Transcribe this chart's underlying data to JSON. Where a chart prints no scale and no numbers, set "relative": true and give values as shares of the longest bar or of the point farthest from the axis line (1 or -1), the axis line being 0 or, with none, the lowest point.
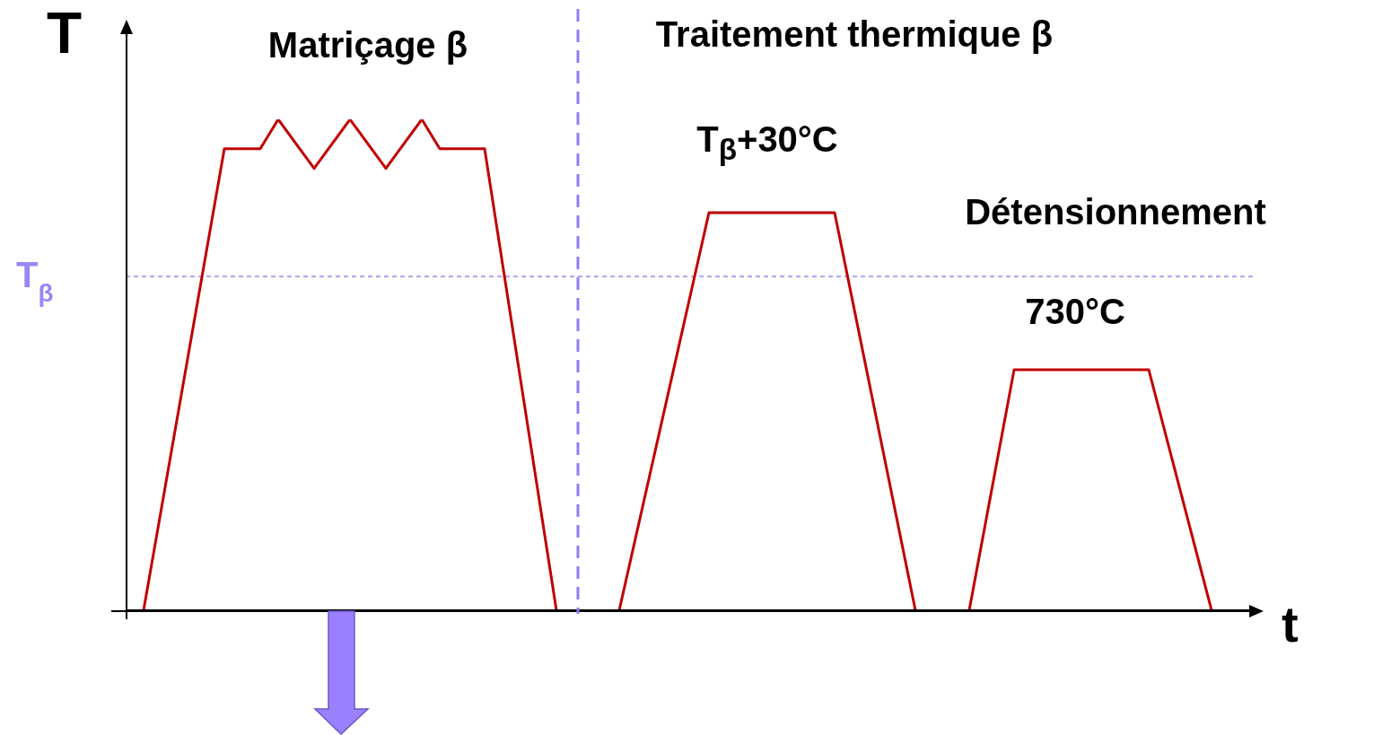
{
  "chart_data": {
    "type": "line",
    "relative": true,
    "xlabel": "t",
    "ylabel": "T",
    "categories": [
      null,
      null,
      null,
      null,
      null,
      null,
      null,
      null,
      null,
      null,
      null,
      null,
      null,
      null,
      null,
      null,
      null,
      null,
      null,
      null,
      null,
      null,
      null,
      null,
      null,
      null,
      null,
      null,
      null,
      null,
      null,
      null,
      null,
      null,
      null,
      null,
      null,
      null,
      null,
      null,
      null,
      null,
      null,
      null,
      null,
      null,
      null,
      null,
      null,
      null,
      null,
      null,
      null,
      null,
      null,
      null,
      null,
      null,
      null,
      null,
      null,
      null,
      null,
      null,
      null,
      null,
      null,
      null,
      null,
      null,
      null,
      null,
      null,
      null,
      null,
      null,
      null,
      null,
      null,
      null,
      null,
      null,
      null,
      null,
      null,
      null,
      null,
      null,
      null,
      null,
      null,
      null,
      null,
      null,
      null,
      null,
      null,
      null,
      null,
      null,
      null,
      null,
      null,
      null,
      null,
      null,
      null,
      null,
      null,
      null,
      null,
      null,
      null,
      null,
      null,
      null,
      null,
      null,
      null,
      null,
      null,
      null,
      null,
      null,
      null,
      null,
      null
    ],
    "series": [
      {
        "color": "#c00000",
        "values": [
          null,
          null,
          0,
          null,
          null,
          null,
          null,
          null,
          null,
          null,
          null,
          0.94,
          null,
          null,
          null,
          0.94,
          null,
          1,
          null,
          null,
          null,
          0.9,
          null,
          null,
          null,
          1,
          null,
          null,
          null,
          0.9,
          null,
          null,
          null,
          1,
          null,
          0.94,
          null,
          null,
          null,
          null,
          0.94,
          null,
          null,
          null,
          null,
          null,
          null,
          null,
          0,
          null,
          null,
          null,
          null,
          null,
          null,
          null,
          null,
          null,
          null,
          null,
          null,
          null,
          null,
          null,
          null,
          null,
          null,
          null,
          null,
          null,
          null,
          null,
          null,
          null,
          null,
          null,
          null,
          null,
          null,
          null,
          null,
          null,
          null,
          null,
          null,
          null,
          null,
          null,
          null,
          null,
          null,
          null,
          null,
          null,
          null,
          null,
          null,
          null,
          null,
          null,
          null,
          null,
          null,
          null,
          null,
          null,
          null,
          null,
          null,
          null,
          null,
          null,
          null,
          null,
          null,
          null,
          null,
          null,
          null,
          null,
          null,
          null,
          null,
          null,
          null,
          null,
          null
        ]
      },
      {
        "color": "#c00000",
        "values": [
          null,
          null,
          null,
          null,
          null,
          null,
          null,
          null,
          null,
          null,
          null,
          null,
          null,
          null,
          null,
          null,
          null,
          null,
          null,
          null,
          null,
          null,
          null,
          null,
          null,
          null,
          null,
          null,
          null,
          null,
          null,
          null,
          null,
          null,
          null,
          null,
          null,
          null,
          null,
          null,
          null,
          null,
          null,
          null,
          null,
          null,
          null,
          null,
          null,
          null,
          null,
          null,
          null,
          null,
          null,
          0,
          null,
          null,
          null,
          null,
          null,
          null,
          null,
          null,
          null,
          0.81,
          null,
          null,
          null,
          null,
          null,
          null,
          null,
          null,
          null,
          null,
          null,
          null,
          null,
          0.81,
          null,
          null,
          null,
          null,
          null,
          null,
          null,
          null,
          0,
          null,
          null,
          null,
          null,
          null,
          null,
          null,
          null,
          null,
          null,
          null,
          null,
          null,
          null,
          null,
          null,
          null,
          null,
          null,
          null,
          null,
          null,
          null,
          null,
          null,
          null,
          null,
          null,
          null,
          null,
          null,
          null,
          null,
          null,
          null,
          null,
          null,
          null
        ]
      },
      {
        "color": "#c00000",
        "values": [
          null,
          null,
          null,
          null,
          null,
          null,
          null,
          null,
          null,
          null,
          null,
          null,
          null,
          null,
          null,
          null,
          null,
          null,
          null,
          null,
          null,
          null,
          null,
          null,
          null,
          null,
          null,
          null,
          null,
          null,
          null,
          null,
          null,
          null,
          null,
          null,
          null,
          null,
          null,
          null,
          null,
          null,
          null,
          null,
          null,
          null,
          null,
          null,
          null,
          null,
          null,
          null,
          null,
          null,
          null,
          null,
          null,
          null,
          null,
          null,
          null,
          null,
          null,
          null,
          null,
          null,
          null,
          null,
          null,
          null,
          null,
          null,
          null,
          null,
          null,
          null,
          null,
          null,
          null,
          null,
          null,
          null,
          null,
          null,
          null,
          null,
          null,
          null,
          null,
          null,
          null,
          null,
          null,
          null,
          0,
          null,
          null,
          null,
          null,
          0.49,
          null,
          null,
          null,
          null,
          null,
          null,
          null,
          null,
          null,
          null,
          null,
          null,
          null,
          null,
          0.49,
          null,
          null,
          null,
          null,
          null,
          null,
          0,
          null,
          null,
          null,
          null,
          null
        ]
      }
    ],
    "ref_lines": [
      {
        "axis": "y",
        "value": 0.68,
        "label": "T$_{β}$",
        "color": "#9a86f4",
        "line_style": "dashed"
      }
    ],
    "annotations": [
      "Matriçage β",
      "Traitement thermique β",
      "T$_{β}$+30°C",
      "Détensionnement",
      "730°C"
    ]
  }
}
